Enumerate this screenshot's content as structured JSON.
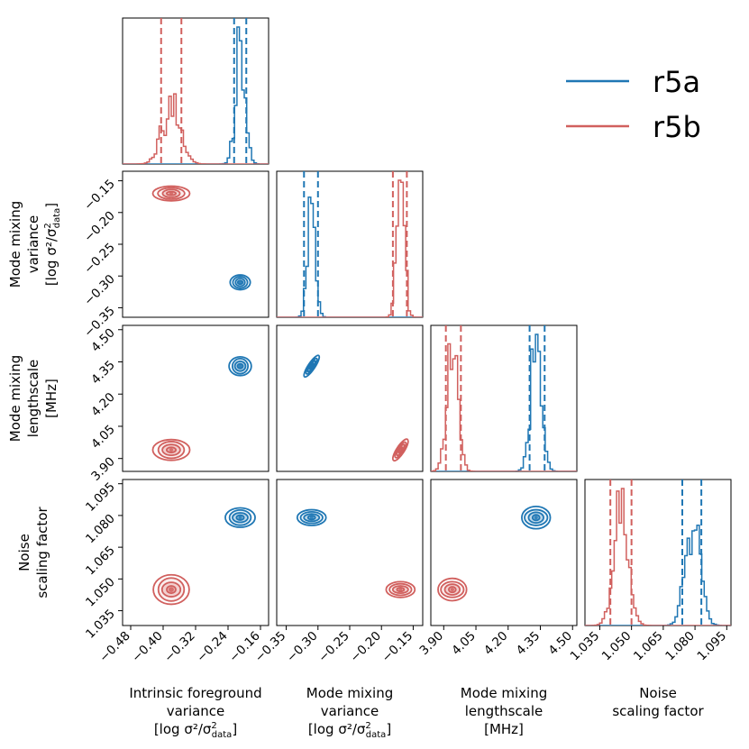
{
  "chart_data": {
    "type": "corner",
    "parameters": [
      {
        "key": "fg",
        "label": [
          "Intrinsic foreground",
          "variance",
          "[log σ²/σ²data]"
        ],
        "ylabel": [
          "Mode mixing",
          "variance",
          "[log σ²/σ²data]"
        ],
        "range": [
          -0.5,
          -0.14
        ],
        "ticks": [
          -0.48,
          -0.4,
          -0.32,
          -0.24,
          -0.16
        ],
        "tick_labels": [
          "−0.48",
          "−0.40",
          "−0.32",
          "−0.24",
          "−0.16"
        ]
      },
      {
        "key": "mmv",
        "label": [
          "Mode mixing",
          "variance",
          "[log σ²/σ²data]"
        ],
        "range": [
          -0.365,
          -0.135
        ],
        "ticks": [
          -0.35,
          -0.3,
          -0.25,
          -0.2,
          -0.15
        ],
        "tick_labels": [
          "−0.35",
          "−0.30",
          "−0.25",
          "−0.20",
          "−0.15"
        ]
      },
      {
        "key": "mml",
        "label": [
          "Mode mixing",
          "lengthscale",
          "[MHz]"
        ],
        "range": [
          3.84,
          4.52
        ],
        "ticks": [
          3.9,
          4.05,
          4.2,
          4.35,
          4.5
        ],
        "tick_labels": [
          "3.90",
          "4.05",
          "4.20",
          "4.35",
          "4.50"
        ]
      },
      {
        "key": "noise",
        "label": [
          "Noise",
          "scaling factor"
        ],
        "range": [
          1.028,
          1.097
        ],
        "ticks": [
          1.035,
          1.05,
          1.065,
          1.08,
          1.095
        ],
        "tick_labels": [
          "1.035",
          "1.050",
          "1.065",
          "1.080",
          "1.095"
        ]
      }
    ],
    "row_labels": [
      [
        "Mode mixing",
        "variance",
        "[log σ²/σ²data]"
      ],
      [
        "Mode mixing",
        "lengthscale",
        "[MHz]"
      ],
      [
        "Noise",
        "scaling factor"
      ]
    ],
    "series": [
      {
        "name": "r5a",
        "color": "#1f77b4",
        "means": {
          "fg": -0.21,
          "mmv": -0.31,
          "mml": 4.33,
          "noise": 1.079
        },
        "sigmas": {
          "fg": 0.012,
          "mmv": 0.006,
          "mml": 0.025,
          "noise": 0.0035
        },
        "quantiles": {
          "fg": [
            -0.225,
            -0.195
          ],
          "mmv": [
            -0.322,
            -0.3
          ],
          "mml": [
            4.3,
            4.37
          ],
          "noise": [
            1.074,
            1.083
          ]
        },
        "correlations": {
          "mmv_mml": 0.85
        }
      },
      {
        "name": "r5b",
        "color": "#d1605e",
        "means": {
          "fg": -0.38,
          "mmv": -0.17,
          "mml": 3.94,
          "noise": 1.045
        },
        "sigmas": {
          "fg": 0.022,
          "mmv": 0.006,
          "mml": 0.025,
          "noise": 0.0035
        },
        "quantiles": {
          "fg": [
            -0.405,
            -0.355
          ],
          "mmv": [
            -0.182,
            -0.16
          ],
          "mml": [
            3.91,
            3.98
          ],
          "noise": [
            1.04,
            1.05
          ]
        },
        "correlations": {
          "mmv_mml": 0.8
        }
      }
    ],
    "legend": {
      "position": "top-right",
      "entries": [
        "r5a",
        "r5b"
      ]
    }
  }
}
